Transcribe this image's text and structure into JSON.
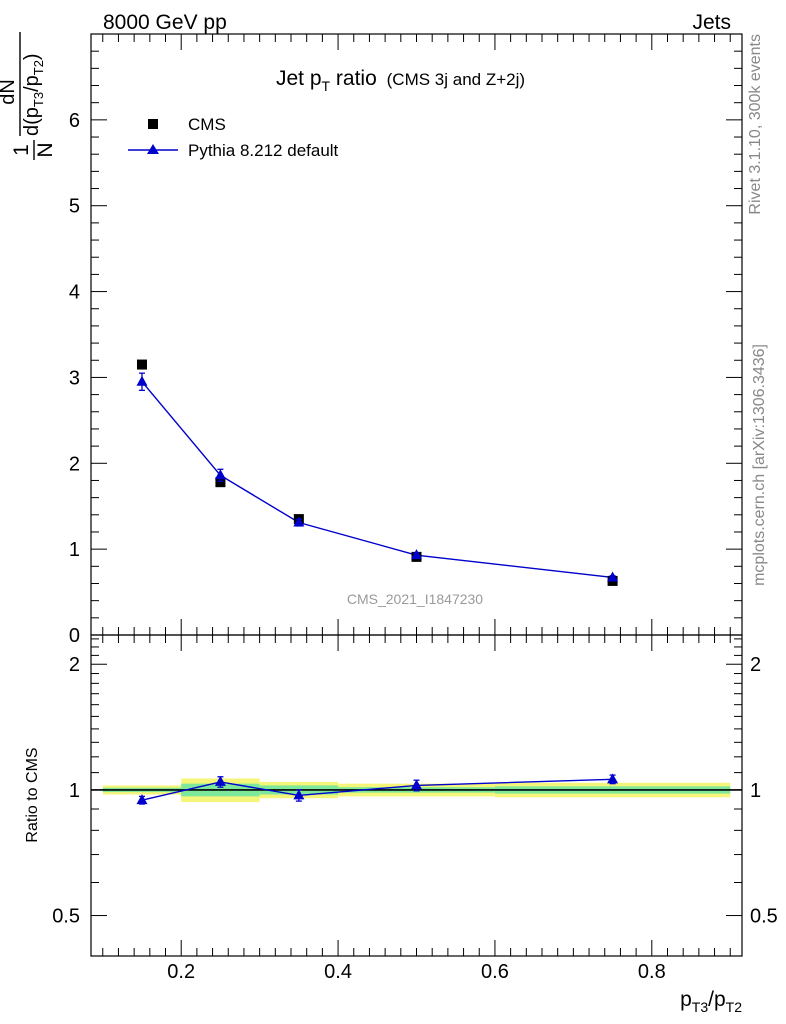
{
  "header": {
    "left": "8000 GeV pp",
    "right": "Jets"
  },
  "title": {
    "main": "Jet p",
    "main_sub": "T",
    "main_tail": " ratio",
    "extra": "(CMS 3j and Z+2j)"
  },
  "legend": {
    "data_label": "CMS",
    "mc_label": "Pythia 8.212 default"
  },
  "watermark": "CMS_2021_I1847230",
  "side": {
    "rivet": "Rivet 3.1.10,  300k events",
    "mcplots": "mcplots.cern.ch [arXiv:1306.3436]"
  },
  "yaxis_main": {
    "num": "1",
    "den": "N",
    "dN": "dN",
    "d_part": "d(p",
    "s1": "T3",
    "mid": "/p",
    "s2": "T2",
    "close": ")"
  },
  "yaxis_ratio": "Ratio to CMS",
  "xaxis": {
    "p1": "p",
    "s1": "T3",
    "mid": "/p",
    "s2": "T2"
  },
  "colors": {
    "mc": "#0000cc",
    "data": "#000000",
    "band_outer": "#f5f57a",
    "band_inner": "#7de89a"
  },
  "chart_data": {
    "type": "scatter",
    "xlim": [
      0.085,
      0.915
    ],
    "ylim_main": [
      0,
      7
    ],
    "ylim_ratio": [
      0.4,
      2.35
    ],
    "ratio_log_scale": true,
    "x_ticks": [
      0.2,
      0.4,
      0.6,
      0.8
    ],
    "x_tick_labels": [
      "0.2",
      "0.4",
      "0.6",
      "0.8"
    ],
    "y_ticks_main": [
      0,
      1,
      2,
      3,
      4,
      5,
      6
    ],
    "y_tick_labels_main": [
      "0",
      "1",
      "2",
      "3",
      "4",
      "5",
      "6"
    ],
    "y_ticks_ratio": [
      0.5,
      1,
      2
    ],
    "y_tick_labels_ratio": [
      "0.5",
      "1",
      "2"
    ],
    "bins": [
      [
        0.1,
        0.2
      ],
      [
        0.2,
        0.3
      ],
      [
        0.3,
        0.4
      ],
      [
        0.4,
        0.6
      ],
      [
        0.6,
        0.9
      ]
    ],
    "x": [
      0.15,
      0.25,
      0.35,
      0.5,
      0.75
    ],
    "series": [
      {
        "name": "CMS",
        "values": [
          3.15,
          1.78,
          1.35,
          0.91,
          0.63
        ],
        "errors": [
          0.02,
          0.02,
          0.01,
          0.01,
          0.01
        ]
      },
      {
        "name": "Pythia 8.212 default",
        "values": [
          2.95,
          1.86,
          1.31,
          0.93,
          0.67
        ],
        "errors": [
          0.1,
          0.07,
          0.04,
          0.025,
          0.02
        ]
      }
    ],
    "ratio": {
      "values": [
        0.945,
        1.045,
        0.97,
        1.025,
        1.06
      ],
      "errors": [
        0.02,
        0.03,
        0.03,
        0.03,
        0.025
      ],
      "band_outer": [
        0.025,
        0.065,
        0.045,
        0.035,
        0.04
      ],
      "band_inner": [
        0.012,
        0.035,
        0.025,
        0.015,
        0.02
      ]
    }
  }
}
